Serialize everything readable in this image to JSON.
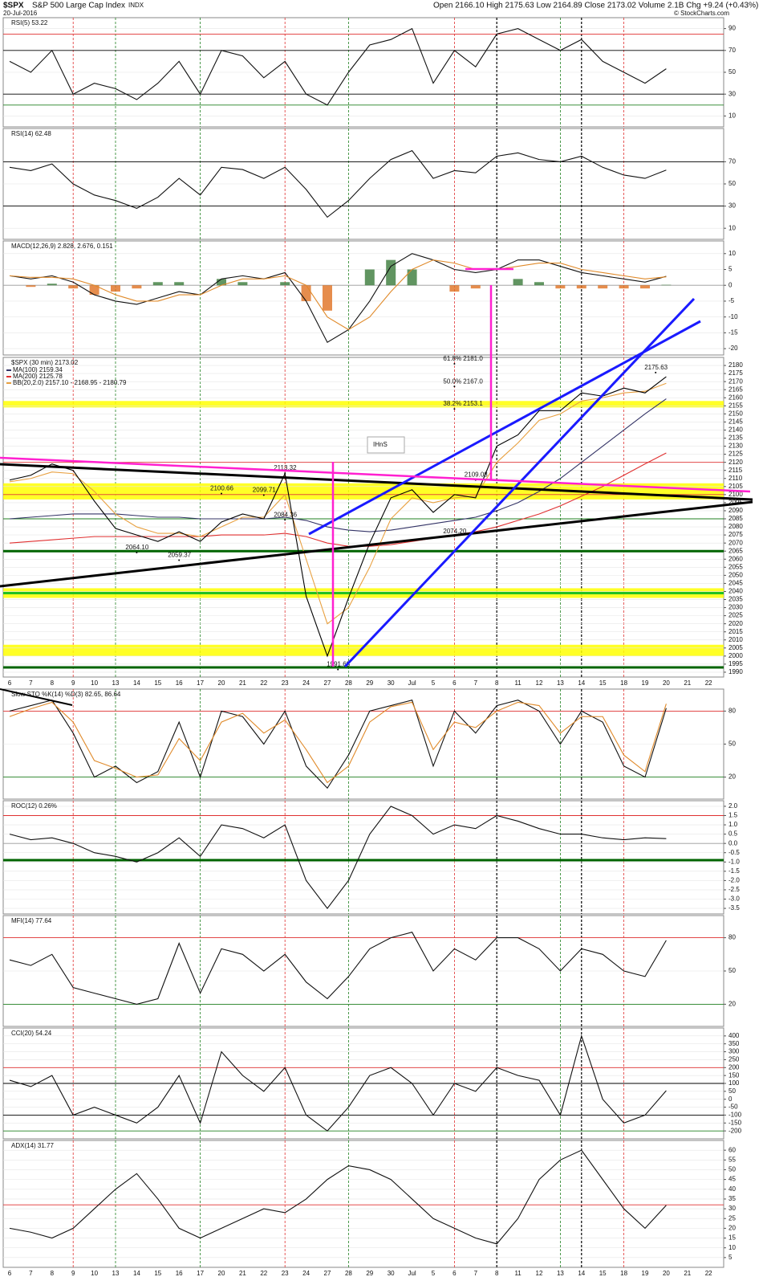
{
  "header": {
    "symbol": "$SPX",
    "name": "S&P 500 Large Cap Index",
    "exchange": "INDX",
    "date": "20-Jul-2016",
    "quote": "Open 2166.10  High 2175.63  Low 2164.89  Close 2173.02  Volume 2.1B  Chg +9.24 (+0.43%)",
    "credit": "© StockCharts.com"
  },
  "chart_data": [
    {
      "type": "line",
      "title": "RSI(5) 53.22",
      "ylim": [
        0,
        100
      ],
      "yticks": [
        10,
        30,
        50,
        70,
        90
      ],
      "hlines": [
        {
          "value": 85,
          "color": "#e03030"
        },
        {
          "value": 70,
          "color": "#000000"
        },
        {
          "value": 30,
          "color": "#000000"
        },
        {
          "value": 20,
          "color": "#208020"
        }
      ],
      "series": [
        {
          "color": "#111111",
          "values": [
            60,
            50,
            70,
            30,
            40,
            35,
            25,
            40,
            60,
            30,
            70,
            65,
            45,
            60,
            30,
            20,
            50,
            75,
            80,
            90,
            40,
            70,
            55,
            85,
            90,
            80,
            70,
            80,
            60,
            50,
            40,
            53.22,
            null,
            null
          ]
        }
      ]
    },
    {
      "type": "line",
      "title": "RSI(14) 62.48",
      "ylim": [
        0,
        100
      ],
      "yticks": [
        10,
        30,
        50,
        70
      ],
      "hlines": [
        {
          "value": 70,
          "color": "#000000"
        },
        {
          "value": 30,
          "color": "#000000"
        }
      ],
      "series": [
        {
          "color": "#111111",
          "values": [
            65,
            62,
            68,
            50,
            40,
            35,
            28,
            38,
            55,
            40,
            65,
            63,
            55,
            65,
            45,
            20,
            35,
            55,
            72,
            80,
            55,
            62,
            60,
            75,
            78,
            72,
            70,
            75,
            65,
            58,
            55,
            62.48,
            null,
            null
          ]
        }
      ]
    },
    {
      "type": "line",
      "title": "MACD(12,26,9) 2.828, 2.676, 0.151",
      "ylim": [
        -22,
        14
      ],
      "yticks": [
        10,
        5,
        0,
        -5,
        -10,
        -15,
        -20
      ],
      "hlines": [
        {
          "value": 0,
          "color": "#999999"
        }
      ],
      "series": [
        {
          "style": "bar",
          "color": "#3a7a3a",
          "values": [
            0,
            -0.5,
            0.5,
            -1,
            -3,
            -2,
            -1,
            1,
            1,
            0,
            2,
            1,
            0,
            1,
            -5,
            -8,
            0,
            5,
            8,
            5,
            0,
            -2,
            -1,
            0,
            2,
            1,
            -1,
            -1,
            -1,
            -1,
            -1,
            0.151,
            null,
            null
          ]
        },
        {
          "color": "#111111",
          "values": [
            3,
            2,
            3,
            1,
            -3,
            -5,
            -6,
            -4,
            -2,
            -3,
            2,
            3,
            2,
            4,
            -5,
            -18,
            -14,
            -5,
            6,
            10,
            8,
            5,
            4,
            5,
            8,
            8,
            6,
            4,
            3,
            2,
            1,
            2.828,
            null,
            null
          ]
        },
        {
          "color": "#e08a2a",
          "values": [
            3,
            2.5,
            2.5,
            2,
            0,
            -3,
            -5,
            -5,
            -3,
            -3,
            0,
            2,
            2,
            3,
            0,
            -10,
            -14,
            -10,
            -2,
            5,
            8,
            7,
            5,
            5,
            6,
            7,
            7,
            5,
            4,
            3,
            2,
            2.676,
            null,
            null
          ]
        }
      ]
    },
    {
      "type": "line",
      "title": "$SPX (30 min) 2173.02",
      "ylim": [
        1987,
        2185
      ],
      "yticks": [
        1990,
        1995,
        2000,
        2005,
        2010,
        2015,
        2020,
        2025,
        2030,
        2035,
        2040,
        2045,
        2050,
        2055,
        2060,
        2065,
        2070,
        2075,
        2080,
        2085,
        2090,
        2095,
        2100,
        2105,
        2110,
        2115,
        2120,
        2125,
        2130,
        2135,
        2140,
        2145,
        2150,
        2155,
        2160,
        2165,
        2170,
        2175,
        2180
      ],
      "categories": [
        "6",
        "7",
        "8",
        "9",
        "10",
        "13",
        "14",
        "15",
        "16",
        "17",
        "20",
        "21",
        "22",
        "23",
        "24",
        "27",
        "28",
        "29",
        "30",
        "Jul",
        "5",
        "6",
        "7",
        "8",
        "11",
        "12",
        "13",
        "14",
        "15",
        "18",
        "19",
        "20",
        "21",
        "22"
      ],
      "bands": [
        {
          "from": 2000,
          "to": 2007,
          "color": "#ffff00"
        },
        {
          "from": 2036,
          "to": 2042,
          "color": "#ffff00"
        },
        {
          "from": 2097,
          "to": 2107,
          "color": "#ffff00"
        },
        {
          "from": 2154,
          "to": 2158,
          "color": "#ffff00"
        }
      ],
      "hlines": [
        {
          "value": 2065,
          "color": "#006400"
        },
        {
          "value": 1993,
          "color": "#006400"
        },
        {
          "value": 2039,
          "color": "#22c022"
        },
        {
          "value": 2085,
          "color": "#208020"
        },
        {
          "value": 2120,
          "color": "#e03030"
        },
        {
          "value": 2100,
          "color": "#e03030"
        }
      ],
      "series": [
        {
          "name": "MA(100) 2159.34",
          "color": "#333366",
          "values": [
            2085,
            2086,
            2087,
            2088,
            2088,
            2088,
            2087,
            2086,
            2086,
            2085,
            2085,
            2085,
            2085,
            2086,
            2084,
            2080,
            2078,
            2077,
            2078,
            2080,
            2082,
            2084,
            2086,
            2090,
            2095,
            2102,
            2110,
            2120,
            2130,
            2140,
            2150,
            2159.34,
            null,
            null
          ]
        },
        {
          "name": "MA(200) 2125.78",
          "color": "#e03030",
          "values": [
            2070,
            2071,
            2072,
            2073,
            2074,
            2074,
            2074,
            2074,
            2074,
            2074,
            2075,
            2075,
            2075,
            2076,
            2074,
            2070,
            2068,
            2068,
            2069,
            2071,
            2073,
            2075,
            2077,
            2080,
            2084,
            2088,
            2093,
            2099,
            2105,
            2112,
            2119,
            2125.78,
            null,
            null
          ]
        },
        {
          "name": "BB(20,2.0) 2157.10 - 2168.95 - 2180.79",
          "color": "#e8a040",
          "values": [
            2108,
            2110,
            2114,
            2113,
            2102,
            2088,
            2080,
            2076,
            2076,
            2074,
            2080,
            2086,
            2086,
            2100,
            2060,
            2020,
            2030,
            2055,
            2085,
            2098,
            2095,
            2098,
            2099,
            2120,
            2132,
            2146,
            2150,
            2158,
            2160,
            2163,
            2164,
            2168.95,
            null,
            null
          ]
        },
        {
          "color": "#000000",
          "values": [
            2109,
            2112,
            2119,
            2115,
            2096,
            2079,
            2075,
            2071,
            2077,
            2071,
            2083,
            2088,
            2085,
            2113,
            2037,
            2000,
            2036,
            2070,
            2098,
            2103,
            2089,
            2100,
            2098,
            2130,
            2137,
            2152,
            2152,
            2163,
            2161,
            2166,
            2163,
            2173.02,
            null,
            null
          ]
        }
      ],
      "annotations": [
        {
          "label": "2175.63",
          "x": 30.5,
          "y": 2175.63
        },
        {
          "label": "2113.32",
          "x": 13,
          "y": 2113.32
        },
        {
          "label": "1991.68",
          "x": 15.5,
          "y": 1991.68
        },
        {
          "label": "2100.66",
          "x": 10,
          "y": 2100.66
        },
        {
          "label": "2099.71",
          "x": 12,
          "y": 2099.71
        },
        {
          "label": "2109.08",
          "x": 22,
          "y": 2109.08
        },
        {
          "label": "2074.20",
          "x": 21,
          "y": 2074.2
        },
        {
          "label": "2064.10",
          "x": 6,
          "y": 2064.1
        },
        {
          "label": "2059.37",
          "x": 8,
          "y": 2059.37
        },
        {
          "label": "2084.36",
          "x": 13,
          "y": 2084.36
        },
        {
          "label": "61.8% 2181.0",
          "x": 21,
          "y": 2181
        },
        {
          "label": "50.0% 2167.0",
          "x": 21,
          "y": 2167
        },
        {
          "label": "38.2% 2153.1",
          "x": 21,
          "y": 2153.1
        }
      ],
      "notes": [
        "IHnS"
      ]
    },
    {
      "type": "line",
      "title": "Slow STO %K(14) %D(3) 82.65, 86.64",
      "ylim": [
        0,
        100
      ],
      "yticks": [
        20,
        50,
        80
      ],
      "hlines": [
        {
          "value": 80,
          "color": "#e03030"
        },
        {
          "value": 20,
          "color": "#208020"
        }
      ],
      "series": [
        {
          "color": "#111111",
          "values": [
            80,
            85,
            90,
            60,
            20,
            30,
            15,
            25,
            70,
            20,
            80,
            75,
            50,
            80,
            30,
            10,
            40,
            80,
            85,
            90,
            30,
            80,
            60,
            85,
            90,
            80,
            50,
            80,
            70,
            30,
            20,
            82.65,
            null,
            null
          ]
        },
        {
          "color": "#e08a2a",
          "values": [
            75,
            82,
            88,
            70,
            35,
            28,
            20,
            22,
            55,
            35,
            70,
            78,
            60,
            72,
            45,
            15,
            30,
            70,
            84,
            88,
            45,
            70,
            65,
            80,
            88,
            85,
            60,
            75,
            75,
            40,
            25,
            86.64,
            null,
            null
          ]
        }
      ]
    },
    {
      "type": "line",
      "title": "ROC(12) 0.26%",
      "ylim": [
        -3.8,
        2.3
      ],
      "yticks": [
        {
          "value": 2,
          "label": "2.0"
        },
        1.5,
        {
          "value": 1,
          "label": "1.0"
        },
        0.5,
        {
          "value": 0,
          "label": "0.0"
        },
        -0.5,
        {
          "value": -1,
          "label": "-1.0"
        },
        -1.5,
        {
          "value": -2,
          "label": "-2.0"
        },
        -2.5,
        {
          "value": -3,
          "label": "-3.0"
        },
        -3.5
      ],
      "hlines": [
        {
          "value": 1.5,
          "color": "#e03030"
        },
        {
          "value": 0,
          "color": "#999999"
        },
        {
          "value": -0.9,
          "color": "#006400"
        }
      ],
      "series": [
        {
          "color": "#111111",
          "values": [
            0.5,
            0.2,
            0.3,
            0,
            -0.5,
            -0.7,
            -1.0,
            -0.5,
            0.3,
            -0.7,
            1.0,
            0.8,
            0.3,
            1.0,
            -2.0,
            -3.5,
            -2.0,
            0.5,
            2.0,
            1.5,
            0.5,
            1.0,
            0.8,
            1.5,
            1.2,
            0.8,
            0.5,
            0.5,
            0.3,
            0.2,
            0.3,
            0.26,
            null,
            null
          ]
        }
      ]
    },
    {
      "type": "line",
      "title": "MFI(14) 77.64",
      "ylim": [
        0,
        100
      ],
      "yticks": [
        20,
        50,
        80
      ],
      "hlines": [
        {
          "value": 80,
          "color": "#e03030"
        },
        {
          "value": 20,
          "color": "#208020"
        }
      ],
      "series": [
        {
          "color": "#111111",
          "values": [
            60,
            55,
            65,
            35,
            30,
            25,
            20,
            25,
            75,
            30,
            70,
            65,
            50,
            65,
            40,
            25,
            45,
            70,
            80,
            85,
            50,
            70,
            60,
            80,
            80,
            70,
            50,
            70,
            65,
            50,
            45,
            77.64,
            null,
            null
          ]
        }
      ]
    },
    {
      "type": "line",
      "title": "CCI(20) 54.24",
      "ylim": [
        -250,
        450
      ],
      "yticks": [
        400,
        350,
        300,
        250,
        200,
        150,
        100,
        50,
        0,
        -50,
        -100,
        -150,
        -200
      ],
      "hlines": [
        {
          "value": 200,
          "color": "#e03030"
        },
        {
          "value": 100,
          "color": "#000000"
        },
        {
          "value": -100,
          "color": "#000000"
        },
        {
          "value": -200,
          "color": "#208020"
        }
      ],
      "series": [
        {
          "color": "#111111",
          "values": [
            120,
            80,
            150,
            -100,
            -50,
            -100,
            -150,
            -50,
            150,
            -150,
            300,
            150,
            50,
            200,
            -100,
            -200,
            -50,
            150,
            200,
            100,
            -100,
            100,
            50,
            200,
            150,
            120,
            -100,
            400,
            0,
            -150,
            -100,
            54.24,
            null,
            null
          ]
        }
      ]
    },
    {
      "type": "line",
      "title": "ADX(14) 31.77",
      "ylim": [
        0,
        65
      ],
      "yticks": [
        5,
        10,
        15,
        20,
        25,
        30,
        35,
        40,
        45,
        50,
        55,
        60
      ],
      "categories": [
        "6",
        "7",
        "8",
        "9",
        "10",
        "13",
        "14",
        "15",
        "16",
        "17",
        "20",
        "21",
        "22",
        "23",
        "24",
        "27",
        "28",
        "29",
        "30",
        "Jul",
        "5",
        "6",
        "7",
        "8",
        "11",
        "12",
        "13",
        "14",
        "15",
        "18",
        "19",
        "20",
        "21",
        "22"
      ],
      "hlines": [
        {
          "value": 32,
          "color": "#e03030"
        }
      ],
      "series": [
        {
          "color": "#111111",
          "values": [
            20,
            18,
            15,
            20,
            30,
            40,
            48,
            35,
            20,
            15,
            20,
            25,
            30,
            28,
            35,
            45,
            52,
            50,
            45,
            35,
            25,
            20,
            15,
            12,
            25,
            45,
            55,
            60,
            45,
            30,
            20,
            31.77,
            null,
            null
          ]
        }
      ]
    }
  ]
}
